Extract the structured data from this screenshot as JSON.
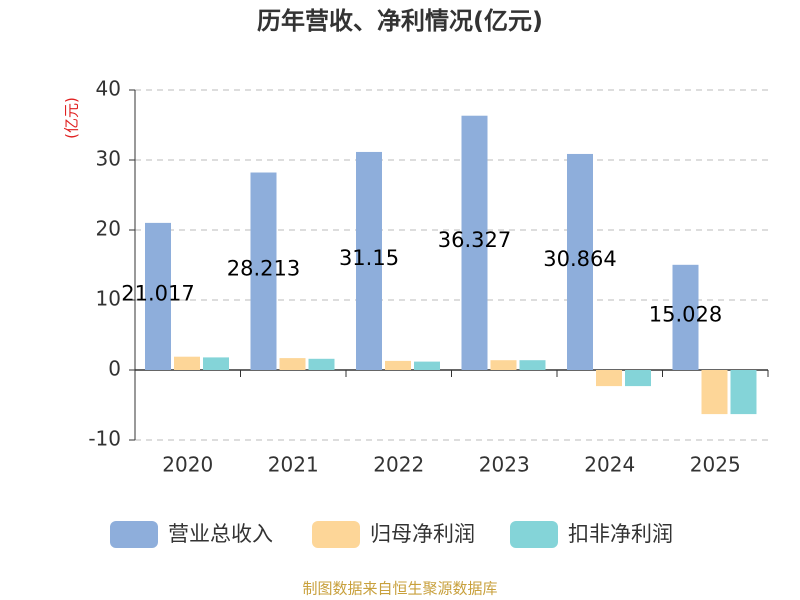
{
  "chart_data": {
    "type": "bar",
    "title": "历年营收、净利情况(亿元)",
    "y_unit": "(亿元)",
    "source": "制图数据来自恒生聚源数据库",
    "categories": [
      "2020",
      "2021",
      "2022",
      "2023",
      "2024",
      "2025"
    ],
    "series": [
      {
        "name": "营业总收入",
        "color": "#8eaedb",
        "values": [
          21.017,
          28.213,
          31.15,
          36.327,
          30.864,
          15.028
        ],
        "show_labels": true
      },
      {
        "name": "归母净利润",
        "color": "#fdd698",
        "values": [
          1.9,
          1.7,
          1.3,
          1.4,
          -2.3,
          -6.3
        ],
        "show_labels": false
      },
      {
        "name": "扣非净利润",
        "color": "#84d4d8",
        "values": [
          1.8,
          1.6,
          1.2,
          1.4,
          -2.3,
          -6.3
        ],
        "show_labels": false
      }
    ],
    "ylim": [
      -10,
      40
    ],
    "yticks": [
      -10,
      0,
      10,
      20,
      30,
      40
    ],
    "grid": true
  }
}
